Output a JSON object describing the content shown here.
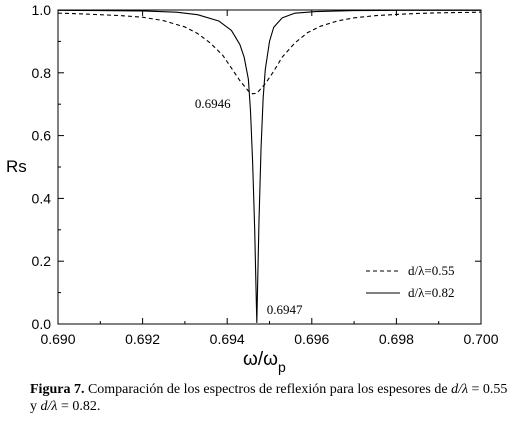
{
  "chart_data": {
    "type": "line",
    "xlabel": "ω/ωp",
    "xlabel_main": "ω/ω",
    "xlabel_sub": "p",
    "ylabel": "Rs",
    "xlim": [
      0.69,
      0.7
    ],
    "ylim": [
      0.0,
      1.0
    ],
    "xticks": [
      "0.690",
      "0.692",
      "0.694",
      "0.696",
      "0.698",
      "0.700"
    ],
    "yticks": [
      "0.0",
      "0.2",
      "0.4",
      "0.6",
      "0.8",
      "1.0"
    ],
    "grid": false,
    "legend_position": "bottom-right",
    "series": [
      {
        "name": "d/λ=0.55",
        "style": "dashed",
        "color": "#000000",
        "x": [
          0.69,
          0.6905,
          0.691,
          0.6915,
          0.692,
          0.6925,
          0.693,
          0.6933,
          0.6936,
          0.6939,
          0.6941,
          0.6943,
          0.6945,
          0.6946,
          0.6947,
          0.6949,
          0.6951,
          0.6953,
          0.6956,
          0.6959,
          0.6962,
          0.6966,
          0.697,
          0.6975,
          0.698,
          0.6985,
          0.699,
          0.6995,
          0.7
        ],
        "y": [
          0.99,
          0.988,
          0.985,
          0.982,
          0.977,
          0.966,
          0.946,
          0.925,
          0.895,
          0.855,
          0.815,
          0.775,
          0.742,
          0.733,
          0.735,
          0.765,
          0.805,
          0.85,
          0.895,
          0.928,
          0.948,
          0.965,
          0.975,
          0.982,
          0.986,
          0.989,
          0.991,
          0.992,
          0.993
        ]
      },
      {
        "name": "d/λ=0.82",
        "style": "solid",
        "color": "#000000",
        "x": [
          0.69,
          0.691,
          0.692,
          0.6928,
          0.6933,
          0.6938,
          0.6941,
          0.6943,
          0.6944,
          0.6945,
          0.69455,
          0.6946,
          0.69465,
          0.69468,
          0.6947,
          0.69472,
          0.69475,
          0.6948,
          0.69485,
          0.6949,
          0.695,
          0.6951,
          0.6953,
          0.6956,
          0.6961,
          0.697,
          0.698,
          0.699,
          0.7
        ],
        "y": [
          0.999,
          0.998,
          0.997,
          0.993,
          0.985,
          0.965,
          0.935,
          0.89,
          0.85,
          0.78,
          0.68,
          0.52,
          0.3,
          0.12,
          0.005,
          0.13,
          0.32,
          0.56,
          0.72,
          0.81,
          0.9,
          0.945,
          0.975,
          0.99,
          0.995,
          0.998,
          0.999,
          0.999,
          0.999
        ]
      }
    ],
    "annotations": [
      {
        "text": "0.6946",
        "x": 0.6946,
        "y": 0.733
      },
      {
        "text": "0.6947",
        "x": 0.6947,
        "y": 0.0
      }
    ],
    "ref_line": {
      "y": 1.0
    }
  },
  "caption": {
    "figure_label": "Figura 7.",
    "text_1": " Comparación de los espectros de reflexión para los espesores de ",
    "math_1": "d/λ",
    "text_2": " = 0.55 y ",
    "math_2": "d/λ",
    "text_3": " = 0.82."
  }
}
